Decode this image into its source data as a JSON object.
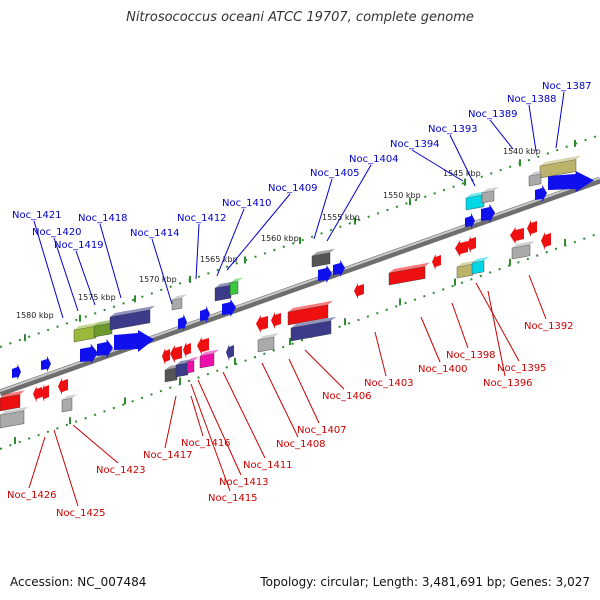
{
  "title": "Nitrosococcus oceani ATCC 19707, complete genome",
  "footer": {
    "accession": "Accession: NC_007484",
    "summary": "Topology: circular; Length: 3,481,691 bp; Genes: 3,027"
  },
  "colors": {
    "forward_label": "#0000cc",
    "reverse_label": "#cc0000",
    "backbone": "#8a8a8a",
    "ruler": "#2e8b2e"
  },
  "kbp_marks": [
    "1540 kbp",
    "1545 kbp",
    "1550 kbp",
    "1555 kbp",
    "1560 kbp",
    "1565 kbp",
    "1570 kbp",
    "1575 kbp",
    "1580 kbp"
  ],
  "forward_genes": [
    "Noc_1387",
    "Noc_1388",
    "Noc_1389",
    "Noc_1393",
    "Noc_1394",
    "Noc_1404",
    "Noc_1405",
    "Noc_1409",
    "Noc_1410",
    "Noc_1412",
    "Noc_1414",
    "Noc_1418",
    "Noc_1419",
    "Noc_1420",
    "Noc_1421"
  ],
  "reverse_genes": [
    "Noc_1392",
    "Noc_1395",
    "Noc_1396",
    "Noc_1398",
    "Noc_1400",
    "Noc_1403",
    "Noc_1406",
    "Noc_1407",
    "Noc_1408",
    "Noc_1411",
    "Noc_1413",
    "Noc_1415",
    "Noc_1416",
    "Noc_1417",
    "Noc_1423",
    "Noc_1425",
    "Noc_1426"
  ]
}
